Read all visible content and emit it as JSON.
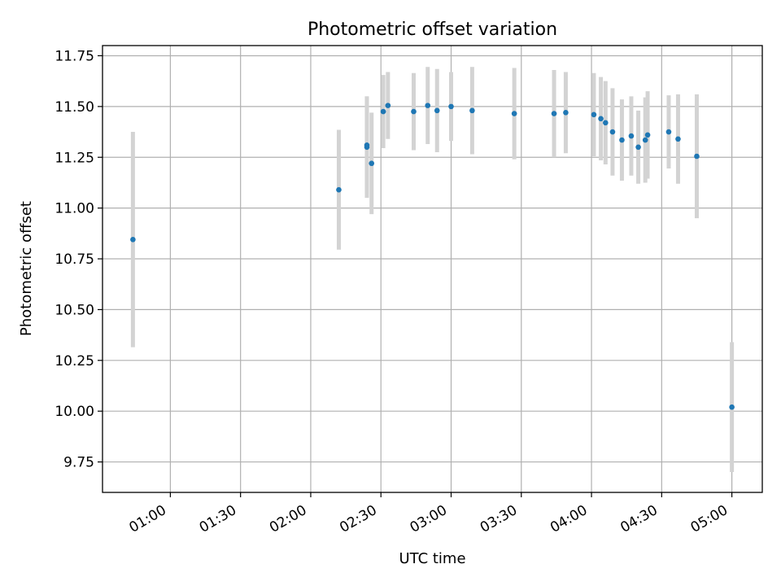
{
  "chart_data": {
    "type": "scatter",
    "title": "Photometric offset variation",
    "xlabel": "UTC time",
    "ylabel": "Photometric offset",
    "xlim": [
      "00:31",
      "05:13"
    ],
    "ylim": [
      9.6,
      11.8
    ],
    "x_ticks": [
      "01:00",
      "01:30",
      "02:00",
      "02:30",
      "03:00",
      "03:30",
      "04:00",
      "04:30",
      "05:00"
    ],
    "y_ticks": [
      "9.75",
      "10.00",
      "10.25",
      "10.50",
      "10.75",
      "11.00",
      "11.25",
      "11.50",
      "11.75"
    ],
    "grid": true,
    "point_color": "#1f77b4",
    "errorbar_color": "#d3d3d3",
    "points": [
      {
        "x": "00:44",
        "y": 10.845,
        "err": 0.53
      },
      {
        "x": "02:12",
        "y": 11.09,
        "err": 0.295
      },
      {
        "x": "02:24",
        "y": 11.3,
        "err": 0.25
      },
      {
        "x": "02:24",
        "y": 11.31,
        "err": 0.24
      },
      {
        "x": "02:26",
        "y": 11.22,
        "err": 0.25
      },
      {
        "x": "02:31",
        "y": 11.475,
        "err": 0.18
      },
      {
        "x": "02:33",
        "y": 11.505,
        "err": 0.165
      },
      {
        "x": "02:44",
        "y": 11.475,
        "err": 0.19
      },
      {
        "x": "02:50",
        "y": 11.505,
        "err": 0.19
      },
      {
        "x": "02:54",
        "y": 11.48,
        "err": 0.205
      },
      {
        "x": "03:00",
        "y": 11.5,
        "err": 0.17
      },
      {
        "x": "03:09",
        "y": 11.48,
        "err": 0.215
      },
      {
        "x": "03:27",
        "y": 11.465,
        "err": 0.225
      },
      {
        "x": "03:44",
        "y": 11.465,
        "err": 0.215
      },
      {
        "x": "03:49",
        "y": 11.47,
        "err": 0.2
      },
      {
        "x": "04:01",
        "y": 11.46,
        "err": 0.205
      },
      {
        "x": "04:04",
        "y": 11.44,
        "err": 0.205
      },
      {
        "x": "04:06",
        "y": 11.42,
        "err": 0.205
      },
      {
        "x": "04:09",
        "y": 11.375,
        "err": 0.215
      },
      {
        "x": "04:13",
        "y": 11.335,
        "err": 0.2
      },
      {
        "x": "04:17",
        "y": 11.355,
        "err": 0.195
      },
      {
        "x": "04:20",
        "y": 11.3,
        "err": 0.18
      },
      {
        "x": "04:23",
        "y": 11.335,
        "err": 0.21
      },
      {
        "x": "04:24",
        "y": 11.36,
        "err": 0.215
      },
      {
        "x": "04:33",
        "y": 11.375,
        "err": 0.18
      },
      {
        "x": "04:37",
        "y": 11.34,
        "err": 0.22
      },
      {
        "x": "04:45",
        "y": 11.255,
        "err": 0.305
      },
      {
        "x": "05:00",
        "y": 10.02,
        "err": 0.32
      }
    ]
  }
}
